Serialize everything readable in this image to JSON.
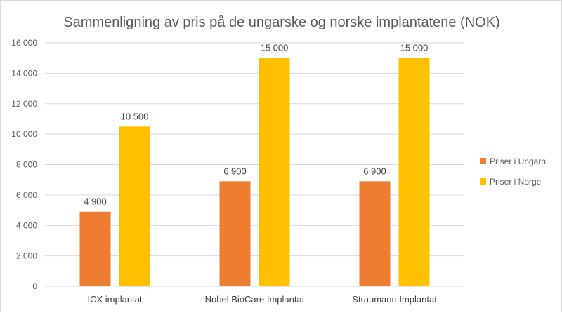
{
  "chart_data": {
    "type": "bar",
    "title": "Sammenligning av pris på de ungarske og norske implantatene (NOK)",
    "categories": [
      "ICX implantat",
      "Nobel BioCare Implantat",
      "Straumann Implantat"
    ],
    "series": [
      {
        "name": "Priser i Ungarn",
        "values": [
          4900,
          6900,
          6900
        ],
        "color": "#ED7D31"
      },
      {
        "name": "Priser i Norge",
        "values": [
          10500,
          15000,
          15000
        ],
        "color": "#FFC000"
      }
    ],
    "data_labels": [
      [
        "4 900",
        "6 900",
        "6 900"
      ],
      [
        "10 500",
        "15 000",
        "15 000"
      ]
    ],
    "ylim": [
      0,
      16000
    ],
    "yticks": [
      0,
      2000,
      4000,
      6000,
      8000,
      10000,
      12000,
      14000,
      16000
    ],
    "ytick_labels": [
      "0",
      "2 000",
      "4 000",
      "6 000",
      "8 000",
      "10 000",
      "12 000",
      "14 000",
      "16 000"
    ],
    "xlabel": "",
    "ylabel": "",
    "grid": true,
    "legend_position": "right"
  }
}
